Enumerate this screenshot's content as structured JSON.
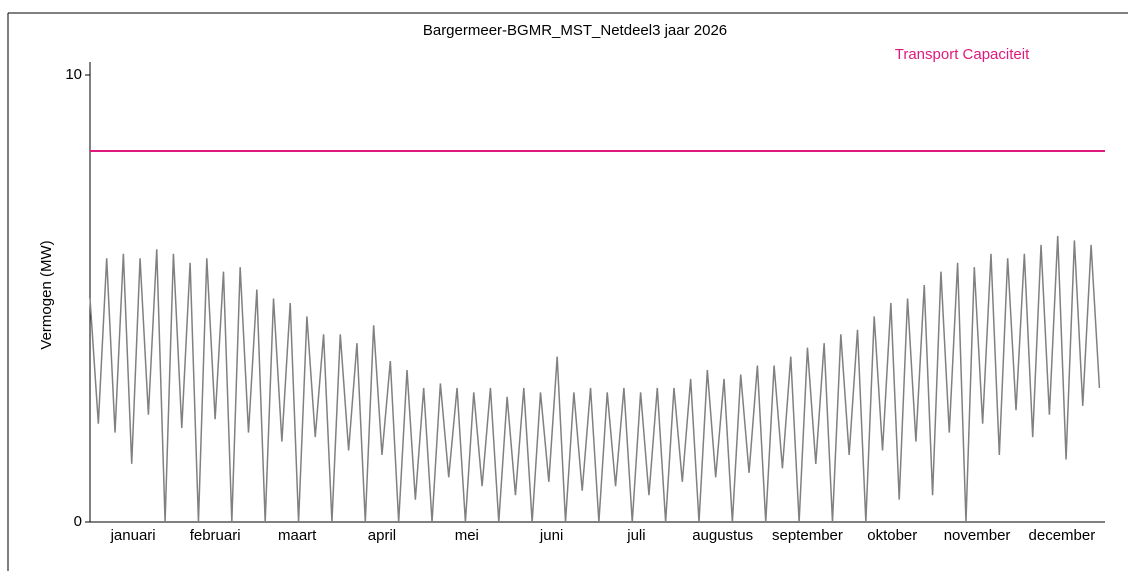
{
  "chart_data": {
    "type": "line",
    "title": "Bargermeer-BGMR_MST_Netdeel3 jaar 2026",
    "y_label": "Vermogen (MW)",
    "xlim": [
      0,
      365
    ],
    "ylim": [
      0,
      10
    ],
    "yticks": [
      0,
      10
    ],
    "xticks": [
      {
        "value": 15.5,
        "label": "januari"
      },
      {
        "value": 45,
        "label": "februari"
      },
      {
        "value": 74.5,
        "label": "maart"
      },
      {
        "value": 105,
        "label": "april"
      },
      {
        "value": 135.5,
        "label": "mei"
      },
      {
        "value": 166,
        "label": "juni"
      },
      {
        "value": 196.5,
        "label": "juli"
      },
      {
        "value": 227.5,
        "label": "augustus"
      },
      {
        "value": 258,
        "label": "september"
      },
      {
        "value": 288.5,
        "label": "oktober"
      },
      {
        "value": 319,
        "label": "november"
      },
      {
        "value": 349.5,
        "label": "december"
      }
    ],
    "hline": {
      "name": "Transport Capaciteit",
      "value": 8.3,
      "color": "#e0197d"
    },
    "x": [
      0,
      3,
      6,
      9,
      12,
      15,
      18,
      21,
      24,
      27,
      30,
      33,
      36,
      39,
      42,
      45,
      48,
      51,
      54,
      57,
      60,
      63,
      66,
      69,
      72,
      75,
      78,
      81,
      84,
      87,
      90,
      93,
      96,
      99,
      102,
      105,
      108,
      111,
      114,
      117,
      120,
      123,
      126,
      129,
      132,
      135,
      138,
      141,
      144,
      147,
      150,
      153,
      156,
      159,
      162,
      165,
      168,
      171,
      174,
      177,
      180,
      183,
      186,
      189,
      192,
      195,
      198,
      201,
      204,
      207,
      210,
      213,
      216,
      219,
      222,
      225,
      228,
      231,
      234,
      237,
      240,
      243,
      246,
      249,
      252,
      255,
      258,
      261,
      264,
      267,
      270,
      273,
      276,
      279,
      282,
      285,
      288,
      291,
      294,
      297,
      300,
      303,
      306,
      309,
      312,
      315,
      318,
      321,
      324,
      327,
      330,
      333,
      336,
      339,
      342,
      345,
      348,
      351,
      354,
      357,
      360,
      363
    ],
    "series": [
      {
        "color": "#808080",
        "values": [
          5.0,
          2.2,
          5.9,
          2.0,
          6.0,
          1.3,
          5.9,
          2.4,
          6.1,
          0.0,
          6.0,
          2.1,
          5.8,
          0.0,
          5.9,
          2.3,
          5.6,
          0.0,
          5.7,
          2.0,
          5.2,
          0.0,
          5.0,
          1.8,
          4.9,
          0.0,
          4.6,
          1.9,
          4.2,
          0.0,
          4.2,
          1.6,
          4.0,
          0.0,
          4.4,
          1.5,
          3.6,
          0.0,
          3.4,
          0.5,
          3.0,
          0.0,
          3.1,
          1.0,
          3.0,
          0.0,
          2.9,
          0.8,
          3.0,
          0.0,
          2.8,
          0.6,
          3.0,
          0.0,
          2.9,
          0.9,
          3.7,
          0.0,
          2.9,
          0.7,
          3.0,
          0.0,
          2.9,
          0.8,
          3.0,
          0.0,
          2.9,
          0.6,
          3.0,
          0.0,
          3.0,
          0.9,
          3.2,
          0.0,
          3.4,
          1.0,
          3.2,
          0.0,
          3.3,
          1.1,
          3.5,
          0.0,
          3.5,
          1.2,
          3.7,
          0.0,
          3.9,
          1.3,
          4.0,
          0.0,
          4.2,
          1.5,
          4.3,
          0.0,
          4.6,
          1.6,
          4.9,
          0.5,
          5.0,
          1.8,
          5.3,
          0.6,
          5.6,
          2.0,
          5.8,
          0.0,
          5.7,
          2.2,
          6.0,
          1.5,
          5.9,
          2.5,
          6.0,
          1.9,
          6.2,
          2.4,
          6.4,
          1.4,
          6.3,
          2.6,
          6.2,
          3.0
        ]
      }
    ]
  }
}
